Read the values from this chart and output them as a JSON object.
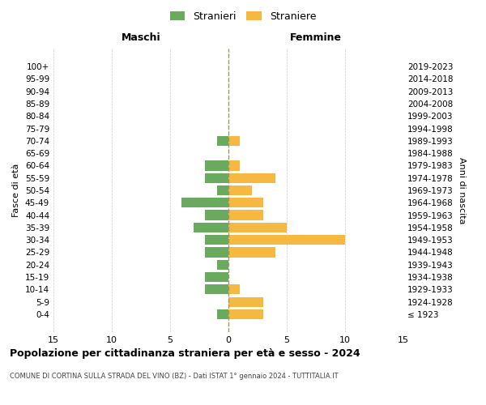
{
  "age_groups": [
    "100+",
    "95-99",
    "90-94",
    "85-89",
    "80-84",
    "75-79",
    "70-74",
    "65-69",
    "60-64",
    "55-59",
    "50-54",
    "45-49",
    "40-44",
    "35-39",
    "30-34",
    "25-29",
    "20-24",
    "15-19",
    "10-14",
    "5-9",
    "0-4"
  ],
  "birth_years": [
    "≤ 1923",
    "1924-1928",
    "1929-1933",
    "1934-1938",
    "1939-1943",
    "1944-1948",
    "1949-1953",
    "1954-1958",
    "1959-1963",
    "1964-1968",
    "1969-1973",
    "1974-1978",
    "1979-1983",
    "1984-1988",
    "1989-1993",
    "1994-1998",
    "1999-2003",
    "2004-2008",
    "2009-2013",
    "2014-2018",
    "2019-2023"
  ],
  "males": [
    0,
    0,
    0,
    0,
    0,
    0,
    1,
    0,
    2,
    2,
    1,
    4,
    2,
    3,
    2,
    2,
    1,
    2,
    2,
    0,
    1
  ],
  "females": [
    0,
    0,
    0,
    0,
    0,
    0,
    1,
    0,
    1,
    4,
    2,
    3,
    3,
    5,
    10,
    4,
    0,
    0,
    1,
    3,
    3
  ],
  "male_color": "#6aaa5f",
  "female_color": "#f5b942",
  "male_label": "Stranieri",
  "female_label": "Straniere",
  "title": "Popolazione per cittadinanza straniera per età e sesso - 2024",
  "subtitle": "COMUNE DI CORTINA SULLA STRADA DEL VINO (BZ) - Dati ISTAT 1° gennaio 2024 - TUTTITALIA.IT",
  "xlabel_left": "Maschi",
  "xlabel_right": "Femmine",
  "ylabel_left": "Fasce di età",
  "ylabel_right": "Anni di nascita",
  "xlim": 15,
  "grid_color": "#cccccc",
  "background_color": "#ffffff",
  "bar_height": 0.8
}
